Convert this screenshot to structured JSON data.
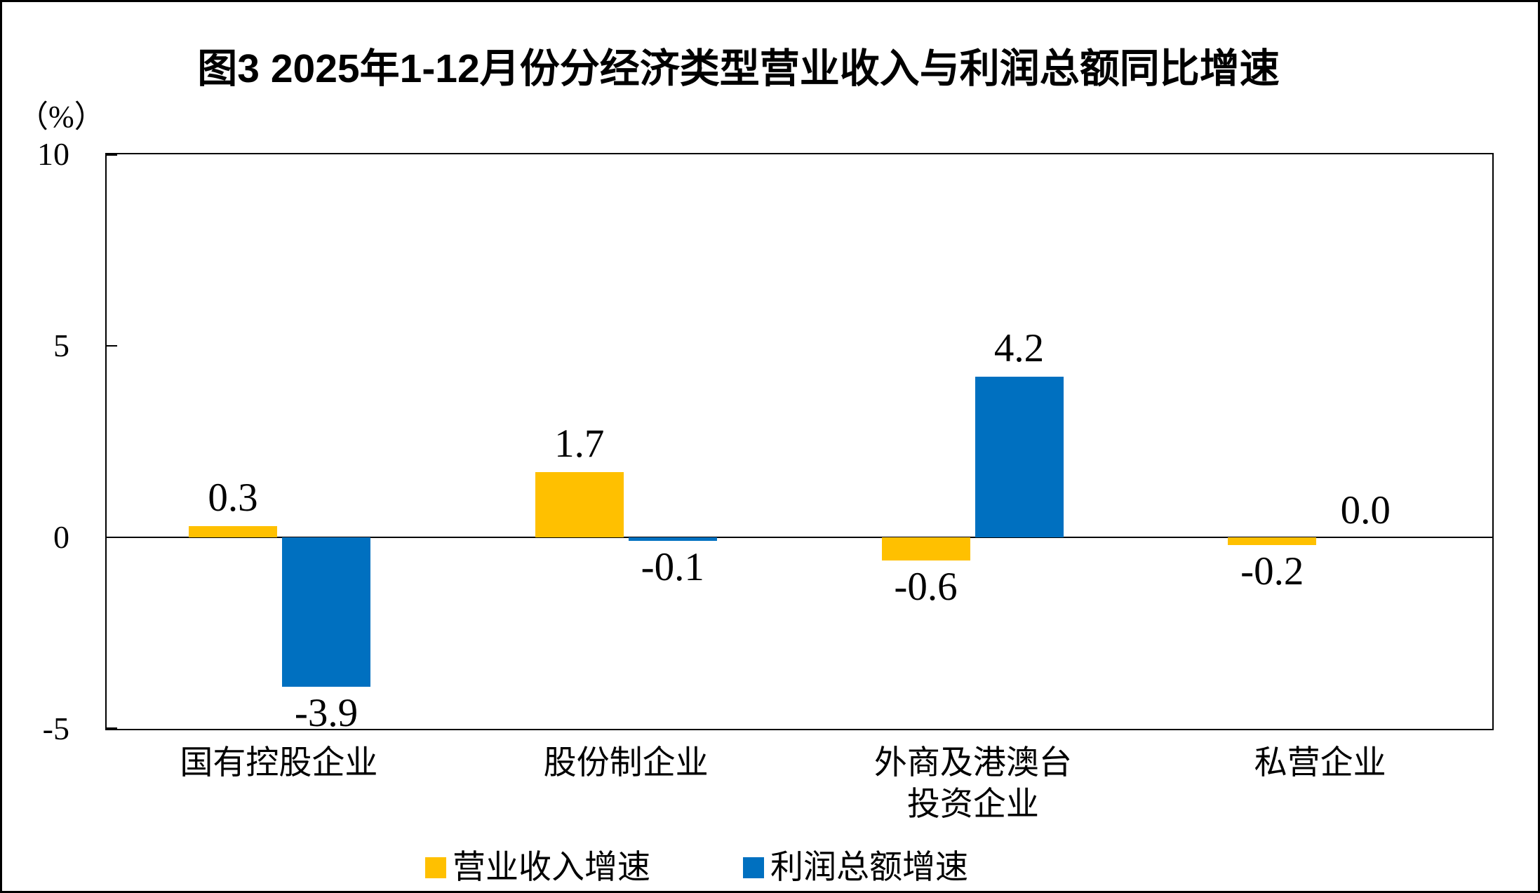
{
  "chart_data": {
    "type": "bar",
    "title": "图3 2025年1-12月份分经济类型营业收入与利润总额同比增速",
    "unit_label": "（%）",
    "categories": [
      "国有控股企业",
      "股份制企业",
      "外商及港澳台\n投资企业",
      "私营企业"
    ],
    "series": [
      {
        "key": "revenue",
        "name": "营业收入增速",
        "color": "#FFC000",
        "values": [
          0.3,
          1.7,
          -0.6,
          -0.2
        ],
        "labels": [
          "0.3",
          "1.7",
          "-0.6",
          "-0.2"
        ]
      },
      {
        "key": "profit",
        "name": "利润总额增速",
        "color": "#0070C0",
        "values": [
          -3.9,
          -0.1,
          4.2,
          0.0
        ],
        "labels": [
          "-3.9",
          "-0.1",
          "4.2",
          "0.0"
        ]
      }
    ],
    "ylim": [
      -5,
      10
    ],
    "yticks": [
      "10",
      "5",
      "0",
      "-5"
    ],
    "ytick_values": [
      10,
      5,
      0,
      -5
    ],
    "grid": false,
    "zero_line": true,
    "legend_position": "bottom"
  }
}
